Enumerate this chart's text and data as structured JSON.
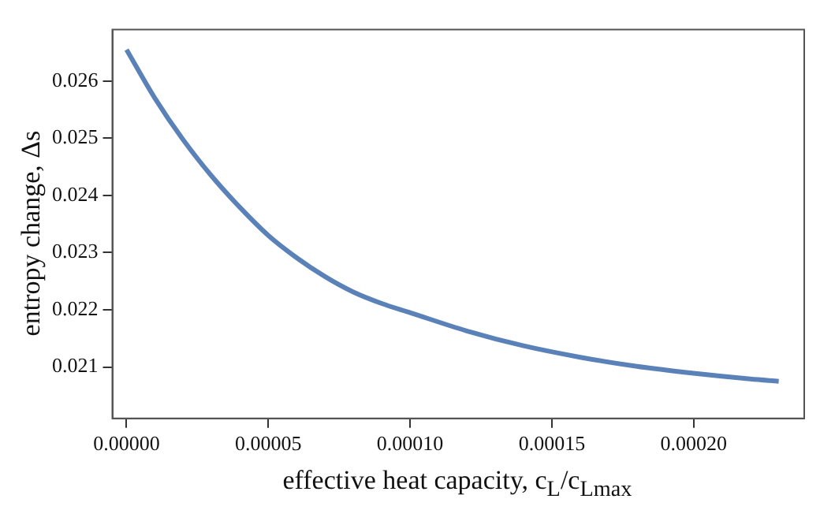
{
  "chart_data": {
    "type": "line",
    "xlabel": "effective heat capacity, c$_{L}$/c$_{Lmax}$",
    "ylabel": "entropy  change, Δs",
    "x": [
      0,
      1e-05,
      2e-05,
      3e-05,
      4e-05,
      5e-05,
      6e-05,
      7e-05,
      8e-05,
      9e-05,
      0.0001,
      0.00012,
      0.00014,
      0.00016,
      0.00018,
      0.0002,
      0.00022,
      0.00023
    ],
    "series": [
      {
        "color": "#5b82b8",
        "values": [
          0.02655,
          0.0257,
          0.02497,
          0.02434,
          0.02379,
          0.0233,
          0.02291,
          0.02258,
          0.02231,
          0.02211,
          0.02195,
          0.02163,
          0.02137,
          0.02117,
          0.02101,
          0.02089,
          0.02079,
          0.02075
        ]
      }
    ],
    "xlim": [
      -5e-06,
      0.000239
    ],
    "ylim": [
      0.0201,
      0.0269
    ],
    "xticks": [
      {
        "value": 0,
        "label": "0.00000"
      },
      {
        "value": 5e-05,
        "label": "0.00005"
      },
      {
        "value": 0.0001,
        "label": "0.00010"
      },
      {
        "value": 0.00015,
        "label": "0.00015"
      },
      {
        "value": 0.0002,
        "label": "0.00020"
      }
    ],
    "yticks": [
      0.021,
      0.022,
      0.023,
      0.024,
      0.025,
      0.026
    ],
    "grid": false,
    "legend": false,
    "marker": "none",
    "line_style": "solid"
  }
}
